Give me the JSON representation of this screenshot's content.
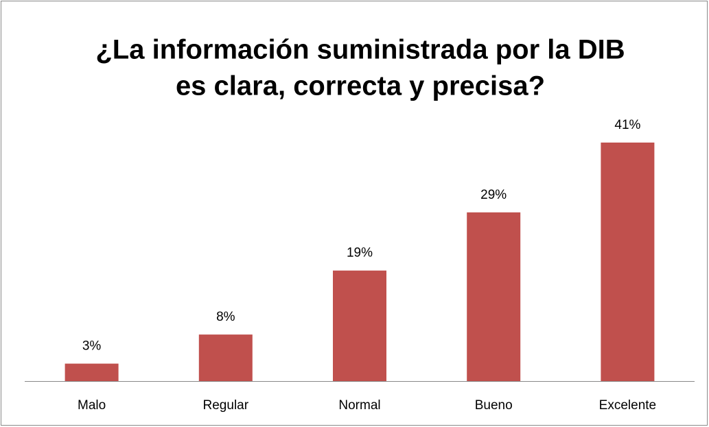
{
  "chart_data": {
    "type": "bar",
    "title": [
      "¿La información suministrada por la DIB",
      "es clara, correcta y precisa?"
    ],
    "categories": [
      "Malo",
      "Regular",
      "Normal",
      "Bueno",
      "Excelente"
    ],
    "values": [
      3,
      8,
      19,
      29,
      41
    ],
    "value_labels": [
      "3%",
      "8%",
      "19%",
      "29%",
      "41%"
    ],
    "color": "#c0504d"
  }
}
